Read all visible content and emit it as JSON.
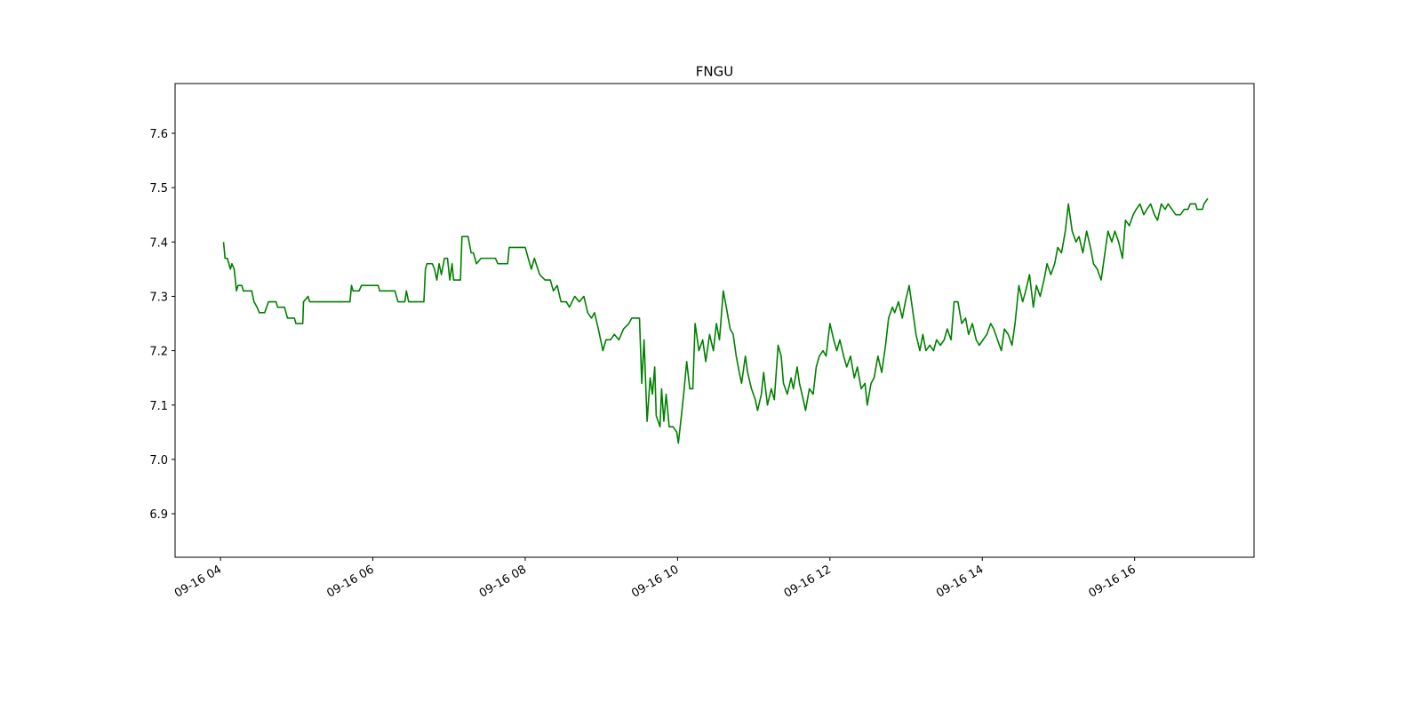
{
  "chart_data": {
    "type": "line",
    "title": "FNGU",
    "color": "#008000",
    "x": [
      4.04,
      4.06,
      4.09,
      4.13,
      4.15,
      4.18,
      4.21,
      4.23,
      4.28,
      4.3,
      4.41,
      4.44,
      4.48,
      4.51,
      4.58,
      4.63,
      4.73,
      4.75,
      4.84,
      4.88,
      4.97,
      4.99,
      5.08,
      5.09,
      5.15,
      5.17,
      5.7,
      5.72,
      5.74,
      5.82,
      5.85,
      6.07,
      6.09,
      6.29,
      6.33,
      6.42,
      6.44,
      6.47,
      6.67,
      6.69,
      6.71,
      6.78,
      6.81,
      6.84,
      6.87,
      6.9,
      6.94,
      6.98,
      7.01,
      7.04,
      7.06,
      7.15,
      7.17,
      7.25,
      7.29,
      7.32,
      7.36,
      7.42,
      7.61,
      7.64,
      7.77,
      7.79,
      8.0,
      8.04,
      8.08,
      8.12,
      8.19,
      8.26,
      8.33,
      8.37,
      8.42,
      8.47,
      8.54,
      8.58,
      8.65,
      8.71,
      8.77,
      8.82,
      8.87,
      8.91,
      8.96,
      9.02,
      9.06,
      9.12,
      9.17,
      9.23,
      9.29,
      9.36,
      9.4,
      9.5,
      9.53,
      9.56,
      9.6,
      9.64,
      9.67,
      9.7,
      9.72,
      9.77,
      9.79,
      9.82,
      9.85,
      9.89,
      9.94,
      9.99,
      10.01,
      10.05,
      10.08,
      10.12,
      10.16,
      10.2,
      10.23,
      10.28,
      10.33,
      10.37,
      10.42,
      10.47,
      10.51,
      10.55,
      10.6,
      10.64,
      10.69,
      10.73,
      10.77,
      10.81,
      10.84,
      10.89,
      10.92,
      10.97,
      11.02,
      11.05,
      11.1,
      11.13,
      11.18,
      11.23,
      11.27,
      11.32,
      11.36,
      11.39,
      11.44,
      11.49,
      11.52,
      11.57,
      11.6,
      11.65,
      11.68,
      11.73,
      11.78,
      11.82,
      11.86,
      11.91,
      11.95,
      12.0,
      12.05,
      12.09,
      12.13,
      12.18,
      12.22,
      12.27,
      12.32,
      12.36,
      12.41,
      12.46,
      12.49,
      12.54,
      12.58,
      12.63,
      12.68,
      12.73,
      12.77,
      12.82,
      12.85,
      12.9,
      12.95,
      12.99,
      13.04,
      13.09,
      13.13,
      13.18,
      13.22,
      13.26,
      13.31,
      13.36,
      13.4,
      13.45,
      13.5,
      13.54,
      13.59,
      13.63,
      13.68,
      13.73,
      13.78,
      13.82,
      13.87,
      13.92,
      13.96,
      14.01,
      14.06,
      14.11,
      14.15,
      14.2,
      14.25,
      14.29,
      14.34,
      14.39,
      14.43,
      14.48,
      14.53,
      14.57,
      14.62,
      14.67,
      14.71,
      14.76,
      14.81,
      14.85,
      14.9,
      14.95,
      14.99,
      15.04,
      15.09,
      15.13,
      15.18,
      15.23,
      15.27,
      15.32,
      15.37,
      15.42,
      15.46,
      15.51,
      15.56,
      15.6,
      15.65,
      15.7,
      15.74,
      15.79,
      15.84,
      15.88,
      15.93,
      15.98,
      16.02,
      16.07,
      16.12,
      16.16,
      16.21,
      16.26,
      16.3,
      16.35,
      16.4,
      16.44,
      16.49,
      16.54,
      16.6,
      16.65,
      16.7,
      16.73,
      16.8,
      16.82,
      16.89,
      16.91,
      16.96
    ],
    "values": [
      7.4,
      7.37,
      7.37,
      7.35,
      7.36,
      7.35,
      7.31,
      7.32,
      7.32,
      7.31,
      7.31,
      7.29,
      7.28,
      7.27,
      7.27,
      7.29,
      7.29,
      7.28,
      7.28,
      7.26,
      7.26,
      7.25,
      7.25,
      7.29,
      7.3,
      7.29,
      7.29,
      7.32,
      7.31,
      7.31,
      7.32,
      7.32,
      7.31,
      7.31,
      7.29,
      7.29,
      7.31,
      7.29,
      7.29,
      7.35,
      7.36,
      7.36,
      7.35,
      7.33,
      7.36,
      7.34,
      7.37,
      7.37,
      7.33,
      7.36,
      7.33,
      7.33,
      7.41,
      7.41,
      7.38,
      7.38,
      7.36,
      7.37,
      7.37,
      7.36,
      7.36,
      7.39,
      7.39,
      7.37,
      7.35,
      7.37,
      7.34,
      7.33,
      7.33,
      7.31,
      7.32,
      7.29,
      7.29,
      7.28,
      7.3,
      7.29,
      7.3,
      7.27,
      7.26,
      7.27,
      7.24,
      7.2,
      7.22,
      7.22,
      7.23,
      7.22,
      7.24,
      7.25,
      7.26,
      7.26,
      7.14,
      7.22,
      7.07,
      7.15,
      7.12,
      7.17,
      7.08,
      7.06,
      7.13,
      7.07,
      7.12,
      7.06,
      7.06,
      7.05,
      7.03,
      7.08,
      7.12,
      7.18,
      7.13,
      7.13,
      7.25,
      7.2,
      7.22,
      7.18,
      7.23,
      7.2,
      7.25,
      7.22,
      7.31,
      7.28,
      7.24,
      7.23,
      7.19,
      7.16,
      7.14,
      7.19,
      7.16,
      7.13,
      7.11,
      7.09,
      7.12,
      7.16,
      7.1,
      7.13,
      7.11,
      7.21,
      7.19,
      7.14,
      7.12,
      7.15,
      7.13,
      7.17,
      7.14,
      7.11,
      7.09,
      7.13,
      7.12,
      7.17,
      7.19,
      7.2,
      7.19,
      7.25,
      7.22,
      7.2,
      7.22,
      7.19,
      7.17,
      7.19,
      7.15,
      7.17,
      7.13,
      7.14,
      7.1,
      7.14,
      7.15,
      7.19,
      7.16,
      7.21,
      7.26,
      7.28,
      7.27,
      7.29,
      7.26,
      7.29,
      7.32,
      7.27,
      7.23,
      7.2,
      7.23,
      7.2,
      7.21,
      7.2,
      7.22,
      7.21,
      7.22,
      7.24,
      7.22,
      7.29,
      7.29,
      7.25,
      7.26,
      7.23,
      7.25,
      7.22,
      7.21,
      7.22,
      7.23,
      7.25,
      7.24,
      7.22,
      7.2,
      7.24,
      7.23,
      7.21,
      7.25,
      7.32,
      7.29,
      7.31,
      7.34,
      7.28,
      7.32,
      7.3,
      7.33,
      7.36,
      7.34,
      7.36,
      7.39,
      7.38,
      7.42,
      7.47,
      7.42,
      7.4,
      7.41,
      7.38,
      7.42,
      7.39,
      7.36,
      7.35,
      7.33,
      7.37,
      7.42,
      7.4,
      7.42,
      7.4,
      7.37,
      7.44,
      7.43,
      7.45,
      7.46,
      7.47,
      7.45,
      7.46,
      7.47,
      7.45,
      7.44,
      7.47,
      7.46,
      7.47,
      7.46,
      7.45,
      7.45,
      7.46,
      7.46,
      7.47,
      7.47,
      7.46,
      7.46,
      7.47,
      7.48
    ],
    "xlim": [
      3.404,
      17.567
    ],
    "ylim": [
      6.82,
      7.6915
    ],
    "xticks": [
      {
        "value": 4,
        "label": "09-16 04"
      },
      {
        "value": 6,
        "label": "09-16 06"
      },
      {
        "value": 8,
        "label": "09-16 08"
      },
      {
        "value": 10,
        "label": "09-16 10"
      },
      {
        "value": 12,
        "label": "09-16 12"
      },
      {
        "value": 14,
        "label": "09-16 14"
      },
      {
        "value": 16,
        "label": "09-16 16"
      }
    ],
    "yticks": [
      6.9,
      {
        "value": 7,
        "label": "7.0"
      },
      7.1,
      7.2,
      7.3,
      7.4,
      7.5,
      7.6
    ],
    "grid": false
  }
}
